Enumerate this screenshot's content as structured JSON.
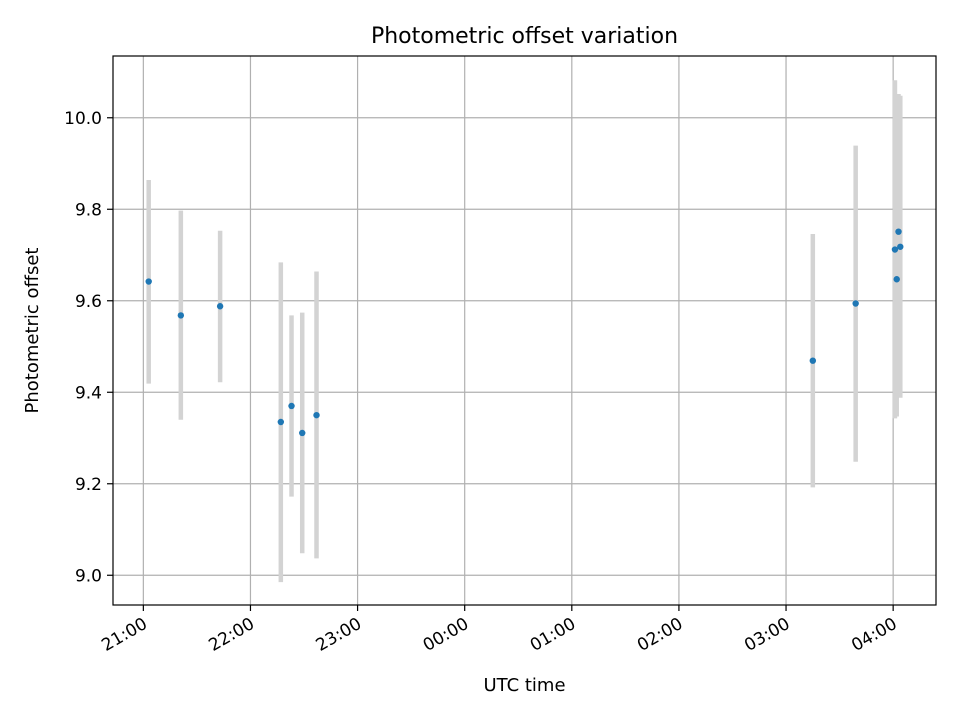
{
  "chart_data": {
    "type": "scatter",
    "title": "Photometric offset variation",
    "xlabel": "UTC time",
    "ylabel": "Photometric offset",
    "x_axis_type": "time",
    "xlim": [
      "20:43",
      "04:24"
    ],
    "ylim": [
      8.935,
      10.135
    ],
    "xticks": [
      "21:00",
      "22:00",
      "23:00",
      "00:00",
      "01:00",
      "02:00",
      "03:00",
      "04:00"
    ],
    "yticks": [
      "9.0",
      "9.2",
      "9.4",
      "9.6",
      "9.8",
      "10.0"
    ],
    "grid": true,
    "legend": null,
    "series": [
      {
        "marker_color": "#1f77b4",
        "errorbar_color": "#d3d3d3",
        "points": [
          {
            "x": "21:03",
            "y": 9.642,
            "y_low": 9.419,
            "y_high": 9.864
          },
          {
            "x": "21:21",
            "y": 9.568,
            "y_low": 9.34,
            "y_high": 9.797
          },
          {
            "x": "21:43",
            "y": 9.588,
            "y_low": 9.422,
            "y_high": 9.753
          },
          {
            "x": "22:17",
            "y": 9.335,
            "y_low": 8.985,
            "y_high": 9.684
          },
          {
            "x": "22:23",
            "y": 9.37,
            "y_low": 9.172,
            "y_high": 9.568
          },
          {
            "x": "22:29",
            "y": 9.311,
            "y_low": 9.048,
            "y_high": 9.574
          },
          {
            "x": "22:37",
            "y": 9.35,
            "y_low": 9.037,
            "y_high": 9.664
          },
          {
            "x": "03:15",
            "y": 9.469,
            "y_low": 9.192,
            "y_high": 9.746
          },
          {
            "x": "03:39",
            "y": 9.594,
            "y_low": 9.248,
            "y_high": 9.939
          },
          {
            "x": "04:01",
            "y": 9.712,
            "y_low": 9.343,
            "y_high": 10.082
          },
          {
            "x": "04:02",
            "y": 9.647,
            "y_low": 9.347,
            "y_high": 9.947
          },
          {
            "x": "04:03",
            "y": 9.751,
            "y_low": 9.45,
            "y_high": 10.052
          },
          {
            "x": "04:04",
            "y": 9.718,
            "y_low": 9.388,
            "y_high": 10.048
          }
        ]
      }
    ]
  }
}
